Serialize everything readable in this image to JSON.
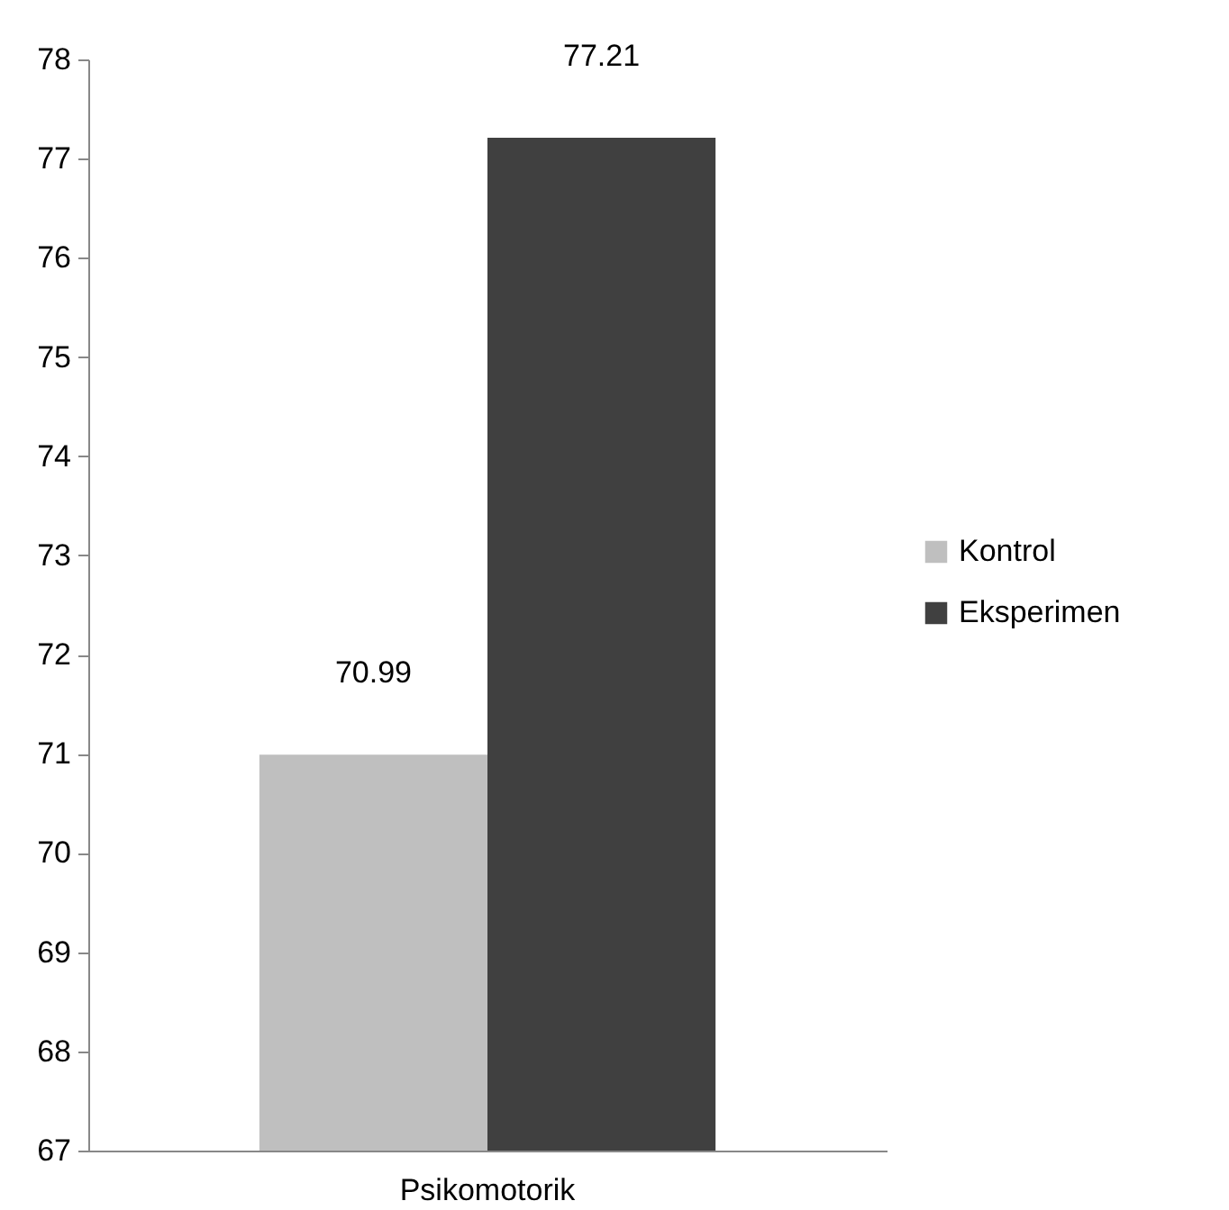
{
  "chart_data": {
    "type": "bar",
    "categories": [
      "Psikomotorik"
    ],
    "series": [
      {
        "name": "Kontrol",
        "color": "#bfbfbf",
        "values": [
          70.99
        ]
      },
      {
        "name": "Eksperimen",
        "color": "#404040",
        "values": [
          77.21
        ]
      }
    ],
    "ylim": [
      67,
      78
    ],
    "yticks": [
      67,
      68,
      69,
      70,
      71,
      72,
      73,
      74,
      75,
      76,
      77,
      78
    ],
    "grid": false,
    "legend": "right",
    "data_labels": true
  }
}
